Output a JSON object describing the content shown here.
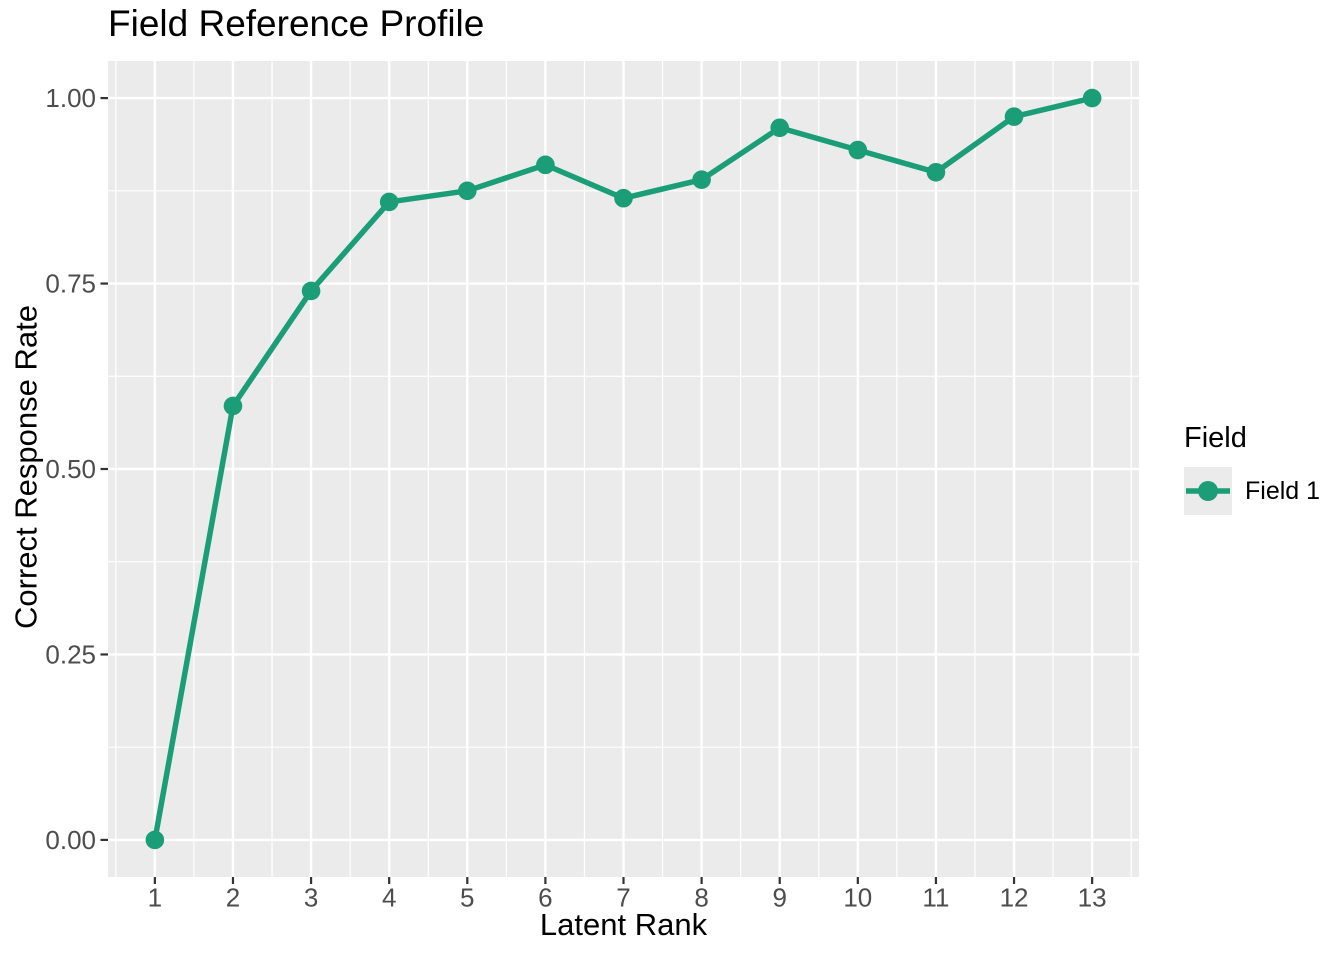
{
  "title": "Field Reference Profile",
  "chart_data": {
    "type": "line",
    "title": "Field Reference Profile",
    "xlabel": "Latent Rank",
    "ylabel": "Correct Response Rate",
    "x": [
      1,
      2,
      3,
      4,
      5,
      6,
      7,
      8,
      9,
      10,
      11,
      12,
      13
    ],
    "series": [
      {
        "name": "Field 1",
        "color": "#1b9e77",
        "values": [
          0.0,
          0.585,
          0.74,
          0.86,
          0.875,
          0.91,
          0.865,
          0.89,
          0.96,
          0.93,
          0.9,
          0.975,
          1.0
        ]
      }
    ],
    "x_ticks": [
      "1",
      "2",
      "3",
      "4",
      "5",
      "6",
      "7",
      "8",
      "9",
      "10",
      "11",
      "12",
      "13"
    ],
    "y_ticks": [
      "0.00",
      "0.25",
      "0.50",
      "0.75",
      "1.00"
    ],
    "y_tick_values": [
      0.0,
      0.25,
      0.5,
      0.75,
      1.0
    ],
    "xlim": [
      0.4,
      13.6
    ],
    "ylim": [
      -0.05,
      1.05
    ],
    "grid": "major+minor",
    "legend_position": "right",
    "marker": "circle",
    "legend": {
      "title": "Field",
      "entries": [
        {
          "label": "Field 1",
          "color": "#1b9e77"
        }
      ]
    },
    "colors": {
      "panel_background": "#EBEBEB",
      "gridline": "#FFFFFF",
      "tick_mark": "#333333",
      "tick_label": "#4D4D4D",
      "text": "#000000",
      "series": "#1b9e77",
      "legend_key_background": "#EBEBEB"
    }
  }
}
